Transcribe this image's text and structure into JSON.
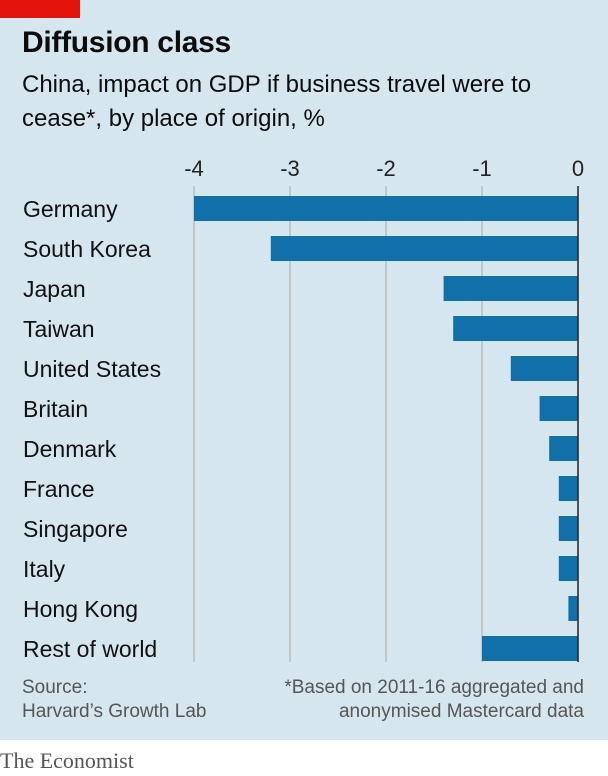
{
  "title": "Diffusion class",
  "subtitle": "China, impact on GDP if business travel were to cease*, by place of origin, %",
  "source": [
    "Source:",
    "Harvard’s Growth Lab"
  ],
  "footnote": [
    "*Based on 2011-16 aggregated and",
    "anonymised Mastercard data"
  ],
  "brand": "The Economist",
  "colors": {
    "bar": "#1170aa",
    "accent": "#e3120b",
    "background": "#d6e6ee",
    "grid": "#a8a8a8"
  },
  "chart_data": {
    "type": "bar",
    "orientation": "horizontal",
    "title": "Diffusion class",
    "subtitle": "China, impact on GDP if business travel were to cease*, by place of origin, %",
    "categories": [
      "Germany",
      "South Korea",
      "Japan",
      "Taiwan",
      "United States",
      "Britain",
      "Denmark",
      "France",
      "Singapore",
      "Italy",
      "Hong Kong",
      "Rest of world"
    ],
    "values": [
      -4.0,
      -3.2,
      -1.4,
      -1.3,
      -0.7,
      -0.4,
      -0.3,
      -0.2,
      -0.2,
      -0.2,
      -0.1,
      -1.0
    ],
    "xlim": [
      -4,
      0
    ],
    "xticks": [
      -4,
      -3,
      -2,
      -1,
      0
    ],
    "tick_labels": [
      "-4",
      "-3",
      "-2",
      "-1",
      "0"
    ],
    "axis_position": "top",
    "grid": true
  }
}
